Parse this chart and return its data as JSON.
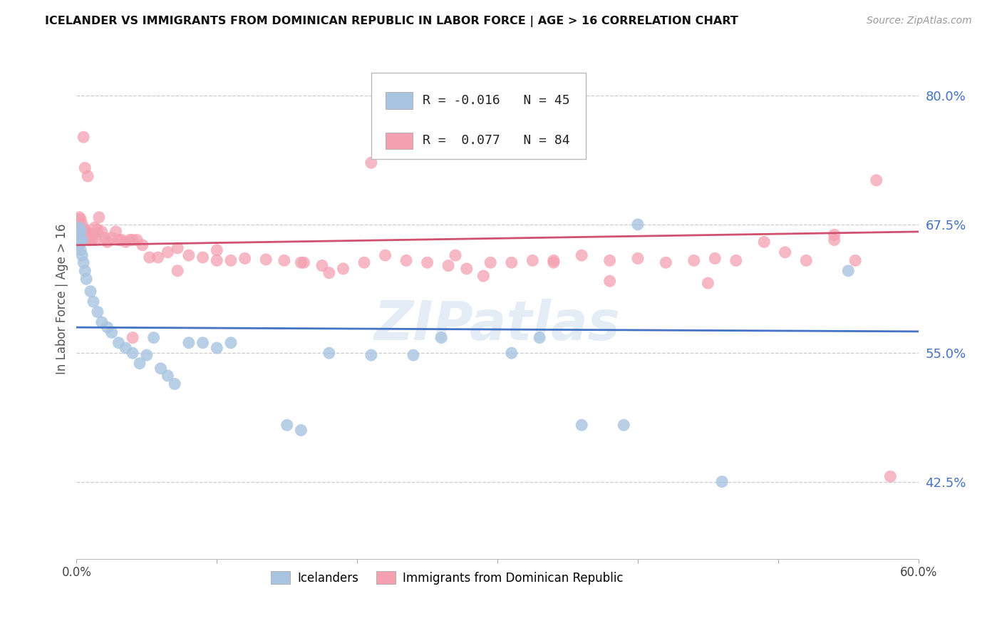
{
  "title": "ICELANDER VS IMMIGRANTS FROM DOMINICAN REPUBLIC IN LABOR FORCE | AGE > 16 CORRELATION CHART",
  "source": "Source: ZipAtlas.com",
  "ylabel": "In Labor Force | Age > 16",
  "yticks": [
    0.425,
    0.55,
    0.675,
    0.8
  ],
  "ytick_labels": [
    "42.5%",
    "55.0%",
    "67.5%",
    "80.0%"
  ],
  "xlim": [
    0.0,
    0.6
  ],
  "ylim": [
    0.35,
    0.855
  ],
  "blue_color": "#a8c4e0",
  "pink_color": "#f4a0b0",
  "blue_line_color": "#4472c4",
  "pink_line_color": "#d05070",
  "legend_blue_r": "-0.016",
  "legend_blue_n": "45",
  "legend_pink_r": "0.077",
  "legend_pink_n": "84",
  "watermark": "ZIPatlas",
  "blue_x": [
    0.001,
    0.001,
    0.002,
    0.002,
    0.002,
    0.003,
    0.003,
    0.003,
    0.004,
    0.004,
    0.005,
    0.006,
    0.007,
    0.01,
    0.012,
    0.015,
    0.018,
    0.022,
    0.025,
    0.03,
    0.035,
    0.04,
    0.045,
    0.05,
    0.055,
    0.06,
    0.065,
    0.07,
    0.08,
    0.09,
    0.1,
    0.11,
    0.15,
    0.16,
    0.18,
    0.21,
    0.24,
    0.26,
    0.31,
    0.33,
    0.36,
    0.39,
    0.4,
    0.46,
    0.55
  ],
  "blue_y": [
    0.67,
    0.665,
    0.672,
    0.66,
    0.655,
    0.668,
    0.658,
    0.65,
    0.66,
    0.645,
    0.638,
    0.63,
    0.622,
    0.61,
    0.6,
    0.59,
    0.58,
    0.575,
    0.57,
    0.56,
    0.555,
    0.55,
    0.54,
    0.548,
    0.565,
    0.535,
    0.528,
    0.52,
    0.56,
    0.56,
    0.555,
    0.56,
    0.48,
    0.475,
    0.55,
    0.548,
    0.548,
    0.565,
    0.55,
    0.565,
    0.48,
    0.48,
    0.675,
    0.425,
    0.63
  ],
  "pink_x": [
    0.001,
    0.001,
    0.002,
    0.002,
    0.003,
    0.003,
    0.004,
    0.004,
    0.005,
    0.005,
    0.006,
    0.006,
    0.007,
    0.008,
    0.009,
    0.01,
    0.011,
    0.012,
    0.013,
    0.014,
    0.015,
    0.016,
    0.018,
    0.02,
    0.022,
    0.025,
    0.028,
    0.03,
    0.032,
    0.035,
    0.038,
    0.04,
    0.043,
    0.047,
    0.052,
    0.058,
    0.065,
    0.072,
    0.08,
    0.09,
    0.1,
    0.11,
    0.12,
    0.135,
    0.148,
    0.162,
    0.175,
    0.19,
    0.205,
    0.22,
    0.235,
    0.25,
    0.265,
    0.278,
    0.295,
    0.31,
    0.325,
    0.34,
    0.36,
    0.38,
    0.4,
    0.42,
    0.44,
    0.455,
    0.47,
    0.49,
    0.505,
    0.52,
    0.54,
    0.555,
    0.57,
    0.072,
    0.16,
    0.21,
    0.27,
    0.34,
    0.04,
    0.1,
    0.18,
    0.29,
    0.38,
    0.45,
    0.54,
    0.58
  ],
  "pink_y": [
    0.68,
    0.675,
    0.682,
    0.673,
    0.68,
    0.672,
    0.675,
    0.668,
    0.76,
    0.67,
    0.73,
    0.67,
    0.668,
    0.722,
    0.66,
    0.662,
    0.66,
    0.666,
    0.672,
    0.66,
    0.67,
    0.682,
    0.668,
    0.662,
    0.658,
    0.662,
    0.668,
    0.66,
    0.66,
    0.658,
    0.66,
    0.66,
    0.66,
    0.655,
    0.643,
    0.643,
    0.648,
    0.652,
    0.645,
    0.643,
    0.65,
    0.64,
    0.642,
    0.641,
    0.64,
    0.638,
    0.635,
    0.632,
    0.638,
    0.645,
    0.64,
    0.638,
    0.635,
    0.632,
    0.638,
    0.638,
    0.64,
    0.638,
    0.645,
    0.64,
    0.642,
    0.638,
    0.64,
    0.642,
    0.64,
    0.658,
    0.648,
    0.64,
    0.66,
    0.64,
    0.718,
    0.63,
    0.638,
    0.735,
    0.645,
    0.64,
    0.565,
    0.64,
    0.628,
    0.625,
    0.62,
    0.618,
    0.665,
    0.43
  ]
}
